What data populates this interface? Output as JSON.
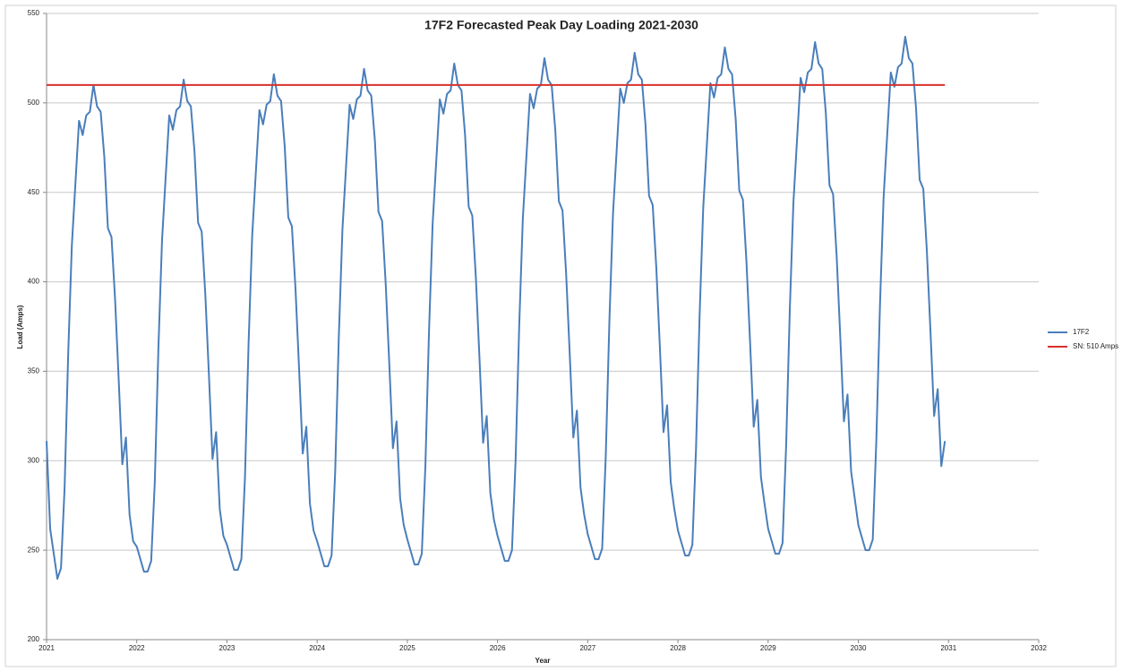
{
  "chart_data": {
    "type": "line",
    "title": "17F2 Forecasted  Peak Day Loading 2021-2030",
    "x_label": "Year",
    "y_label": "Load (Amps)",
    "xlim": [
      2021,
      2032
    ],
    "xticks": [
      2021,
      2022,
      2023,
      2024,
      2025,
      2026,
      2027,
      2028,
      2029,
      2030,
      2031,
      2032
    ],
    "ylim": [
      200,
      550
    ],
    "yticks": [
      200,
      250,
      300,
      350,
      400,
      450,
      500,
      550
    ],
    "grid": true,
    "legend": "right",
    "series": [
      {
        "name": "17F2",
        "color": "#4a7ebb",
        "x": [
          2021,
          2021.04,
          2021.08,
          2021.12,
          2021.16,
          2021.2,
          2021.24,
          2021.28,
          2021.32,
          2021.36,
          2021.4,
          2021.44,
          2021.48,
          2021.52,
          2021.56,
          2021.6,
          2021.64,
          2021.68,
          2021.72,
          2021.76,
          2021.8,
          2021.84,
          2021.88,
          2021.92,
          2021.96,
          2022,
          2022.04,
          2022.08,
          2022.12,
          2022.16,
          2022.2,
          2022.24,
          2022.28,
          2022.32,
          2022.36,
          2022.4,
          2022.44,
          2022.48,
          2022.52,
          2022.56,
          2022.6,
          2022.64,
          2022.68,
          2022.72,
          2022.76,
          2022.8,
          2022.84,
          2022.88,
          2022.92,
          2022.96,
          2023,
          2023.04,
          2023.08,
          2023.12,
          2023.16,
          2023.2,
          2023.24,
          2023.28,
          2023.32,
          2023.36,
          2023.4,
          2023.44,
          2023.48,
          2023.52,
          2023.56,
          2023.6,
          2023.64,
          2023.68,
          2023.72,
          2023.76,
          2023.8,
          2023.84,
          2023.88,
          2023.92,
          2023.96,
          2024,
          2024.04,
          2024.08,
          2024.12,
          2024.16,
          2024.2,
          2024.24,
          2024.28,
          2024.32,
          2024.36,
          2024.4,
          2024.44,
          2024.48,
          2024.52,
          2024.56,
          2024.6,
          2024.64,
          2024.68,
          2024.72,
          2024.76,
          2024.8,
          2024.84,
          2024.88,
          2024.92,
          2024.96,
          2025,
          2025.04,
          2025.08,
          2025.12,
          2025.16,
          2025.2,
          2025.24,
          2025.28,
          2025.32,
          2025.36,
          2025.4,
          2025.44,
          2025.48,
          2025.52,
          2025.56,
          2025.6,
          2025.64,
          2025.68,
          2025.72,
          2025.76,
          2025.8,
          2025.84,
          2025.88,
          2025.92,
          2025.96,
          2026,
          2026.04,
          2026.08,
          2026.12,
          2026.16,
          2026.2,
          2026.24,
          2026.28,
          2026.32,
          2026.36,
          2026.4,
          2026.44,
          2026.48,
          2026.52,
          2026.56,
          2026.6,
          2026.64,
          2026.68,
          2026.72,
          2026.76,
          2026.8,
          2026.84,
          2026.88,
          2026.92,
          2026.96,
          2027,
          2027.04,
          2027.08,
          2027.12,
          2027.16,
          2027.2,
          2027.24,
          2027.28,
          2027.32,
          2027.36,
          2027.4,
          2027.44,
          2027.48,
          2027.52,
          2027.56,
          2027.6,
          2027.64,
          2027.68,
          2027.72,
          2027.76,
          2027.8,
          2027.84,
          2027.88,
          2027.92,
          2027.96,
          2028,
          2028.04,
          2028.08,
          2028.12,
          2028.16,
          2028.2,
          2028.24,
          2028.28,
          2028.32,
          2028.36,
          2028.4,
          2028.44,
          2028.48,
          2028.52,
          2028.56,
          2028.6,
          2028.64,
          2028.68,
          2028.72,
          2028.76,
          2028.8,
          2028.84,
          2028.88,
          2028.92,
          2028.96,
          2029,
          2029.04,
          2029.08,
          2029.12,
          2029.16,
          2029.2,
          2029.24,
          2029.28,
          2029.32,
          2029.36,
          2029.4,
          2029.44,
          2029.48,
          2029.52,
          2029.56,
          2029.6,
          2029.64,
          2029.68,
          2029.72,
          2029.76,
          2029.8,
          2029.84,
          2029.88,
          2029.92,
          2029.96,
          2030,
          2030.04,
          2030.08,
          2030.12,
          2030.16,
          2030.2,
          2030.24,
          2030.28,
          2030.32,
          2030.36,
          2030.4,
          2030.44,
          2030.48,
          2030.52,
          2030.56,
          2030.6,
          2030.64,
          2030.68,
          2030.72,
          2030.76,
          2030.8,
          2030.84,
          2030.88,
          2030.92,
          2030.96
        ],
        "values": [
          311,
          262,
          248,
          234,
          240,
          285,
          360,
          420,
          455,
          490,
          482,
          493,
          495,
          510,
          498,
          495,
          470,
          430,
          425,
          390,
          345,
          298,
          313,
          270,
          255,
          252,
          245,
          238,
          238,
          244,
          288,
          363,
          423,
          458,
          493,
          485,
          496,
          498,
          513,
          501,
          498,
          473,
          433,
          428,
          393,
          348,
          301,
          316,
          273,
          258,
          253,
          246,
          239,
          239,
          245,
          291,
          366,
          426,
          461,
          496,
          488,
          499,
          501,
          516,
          504,
          501,
          476,
          436,
          431,
          396,
          351,
          304,
          319,
          276,
          261,
          255,
          248,
          241,
          241,
          247,
          294,
          369,
          429,
          464,
          499,
          491,
          502,
          504,
          519,
          507,
          504,
          479,
          439,
          434,
          399,
          354,
          307,
          322,
          279,
          264,
          256,
          249,
          242,
          242,
          248,
          297,
          372,
          432,
          467,
          502,
          494,
          505,
          507,
          522,
          510,
          507,
          482,
          442,
          437,
          402,
          357,
          310,
          325,
          282,
          267,
          258,
          251,
          244,
          244,
          250,
          300,
          375,
          435,
          470,
          505,
          497,
          508,
          510,
          525,
          513,
          510,
          485,
          445,
          440,
          405,
          360,
          313,
          328,
          285,
          270,
          259,
          252,
          245,
          245,
          251,
          303,
          378,
          438,
          473,
          508,
          500,
          511,
          513,
          528,
          516,
          513,
          488,
          448,
          443,
          408,
          363,
          316,
          331,
          288,
          273,
          261,
          254,
          247,
          247,
          253,
          306,
          381,
          441,
          476,
          511,
          503,
          514,
          516,
          531,
          519,
          516,
          491,
          451,
          446,
          411,
          366,
          319,
          334,
          291,
          276,
          262,
          255,
          248,
          248,
          254,
          309,
          384,
          444,
          479,
          514,
          506,
          517,
          519,
          534,
          522,
          519,
          494,
          454,
          449,
          414,
          369,
          322,
          337,
          294,
          279,
          264,
          257,
          250,
          250,
          256,
          312,
          387,
          447,
          482,
          517,
          509,
          520,
          522,
          537,
          525,
          522,
          497,
          457,
          452,
          417,
          372,
          325,
          340,
          297,
          311
        ]
      },
      {
        "name": "SN: 510 Amps",
        "color": "#d9312b",
        "x": [
          2021,
          2030.96
        ],
        "values": [
          510,
          510
        ]
      }
    ]
  }
}
